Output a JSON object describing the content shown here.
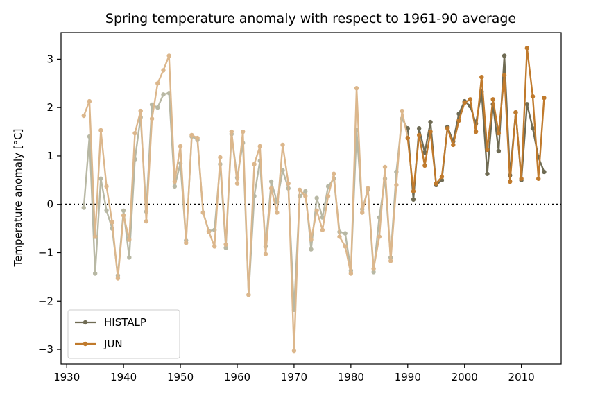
{
  "chart_data": {
    "type": "line",
    "title": "Spring temperature anomaly with respect to 1961-90 average",
    "xlabel": "",
    "ylabel": "Temperature anomaly [°C]",
    "xlim": [
      1929,
      2017
    ],
    "ylim": [
      -3.3,
      3.55
    ],
    "xticks": [
      1930,
      1940,
      1950,
      1960,
      1970,
      1980,
      1990,
      2000,
      2010
    ],
    "yticks": [
      -3,
      -2,
      -1,
      0,
      1,
      2,
      3
    ],
    "ytick_labels": [
      "−3",
      "−2",
      "−1",
      "0",
      "1",
      "2",
      "3"
    ],
    "grid": false,
    "reference_line": {
      "y": 0,
      "style": "dotted"
    },
    "legend_position": "lower-left",
    "colors": {
      "histalp": "#6f6b53",
      "jun": "#c07a2c",
      "histalp_light": "#b8b8a4",
      "jun_light": "#dcb78c"
    },
    "light_until_year": 1990,
    "series": [
      {
        "name": "HISTALP",
        "x": [
          1933,
          1934,
          1935,
          1936,
          1937,
          1938,
          1939,
          1940,
          1941,
          1942,
          1943,
          1944,
          1945,
          1946,
          1947,
          1948,
          1949,
          1950,
          1951,
          1952,
          1953,
          1954,
          1955,
          1956,
          1957,
          1958,
          1959,
          1960,
          1961,
          1962,
          1963,
          1964,
          1965,
          1966,
          1967,
          1968,
          1969,
          1970,
          1971,
          1972,
          1973,
          1974,
          1975,
          1976,
          1977,
          1978,
          1979,
          1980,
          1981,
          1982,
          1983,
          1984,
          1985,
          1986,
          1987,
          1988,
          1989,
          1990,
          1991,
          1992,
          1993,
          1994,
          1995,
          1996,
          1997,
          1998,
          1999,
          2000,
          2001,
          2002,
          2003,
          2004,
          2005,
          2006,
          2007,
          2008,
          2009,
          2010,
          2011,
          2012,
          2013,
          2014
        ],
        "y": [
          -0.07,
          1.4,
          -1.43,
          0.53,
          -0.13,
          -0.5,
          -1.47,
          -0.13,
          -1.1,
          0.93,
          1.8,
          -0.15,
          2.06,
          2.0,
          2.27,
          2.3,
          0.37,
          0.85,
          -0.75,
          1.4,
          1.33,
          -0.17,
          -0.55,
          -0.53,
          0.83,
          -0.9,
          1.45,
          0.55,
          1.27,
          -1.87,
          0.17,
          0.9,
          -0.87,
          0.47,
          0.05,
          0.7,
          0.33,
          -2.18,
          0.17,
          0.27,
          -0.93,
          0.13,
          -0.27,
          0.37,
          0.53,
          -0.57,
          -0.6,
          -1.37,
          1.53,
          -0.1,
          0.3,
          -1.4,
          -0.27,
          0.53,
          -1.1,
          0.67,
          1.77,
          1.57,
          0.1,
          1.57,
          1.07,
          1.7,
          0.4,
          0.5,
          1.6,
          1.3,
          1.87,
          2.13,
          2.03,
          1.67,
          2.33,
          0.63,
          2.07,
          1.1,
          3.07,
          0.6,
          1.9,
          0.5,
          2.07,
          1.57,
          0.97,
          0.67
        ]
      },
      {
        "name": "JUN",
        "x": [
          1933,
          1934,
          1935,
          1936,
          1937,
          1938,
          1939,
          1940,
          1941,
          1942,
          1943,
          1944,
          1945,
          1946,
          1947,
          1948,
          1949,
          1950,
          1951,
          1952,
          1953,
          1954,
          1955,
          1956,
          1957,
          1958,
          1959,
          1960,
          1961,
          1962,
          1963,
          1964,
          1965,
          1966,
          1967,
          1968,
          1969,
          1970,
          1971,
          1972,
          1973,
          1974,
          1975,
          1976,
          1977,
          1978,
          1979,
          1980,
          1981,
          1982,
          1983,
          1984,
          1985,
          1986,
          1987,
          1988,
          1989,
          1990,
          1991,
          1992,
          1993,
          1994,
          1995,
          1996,
          1997,
          1998,
          1999,
          2000,
          2001,
          2002,
          2003,
          2004,
          2005,
          2006,
          2007,
          2008,
          2009,
          2010,
          2011,
          2012,
          2013,
          2014
        ],
        "y": [
          1.83,
          2.13,
          -0.67,
          1.53,
          0.37,
          -0.37,
          -1.53,
          -0.23,
          -0.73,
          1.47,
          1.93,
          -0.35,
          1.77,
          2.5,
          2.77,
          3.07,
          0.47,
          1.2,
          -0.8,
          1.43,
          1.37,
          -0.17,
          -0.57,
          -0.87,
          0.97,
          -0.83,
          1.5,
          0.43,
          1.5,
          -1.87,
          0.83,
          1.2,
          -1.03,
          0.33,
          -0.17,
          1.23,
          0.43,
          -3.03,
          0.3,
          0.17,
          -0.73,
          -0.13,
          -0.53,
          0.17,
          0.63,
          -0.67,
          -0.87,
          -1.43,
          2.4,
          -0.17,
          0.33,
          -1.33,
          -0.67,
          0.77,
          -1.17,
          0.4,
          1.93,
          1.37,
          0.27,
          1.43,
          0.8,
          1.5,
          0.43,
          0.57,
          1.57,
          1.23,
          1.73,
          2.1,
          2.17,
          1.5,
          2.63,
          1.13,
          2.17,
          1.47,
          2.67,
          0.47,
          1.9,
          0.53,
          3.23,
          2.23,
          0.53,
          2.2
        ]
      }
    ]
  }
}
